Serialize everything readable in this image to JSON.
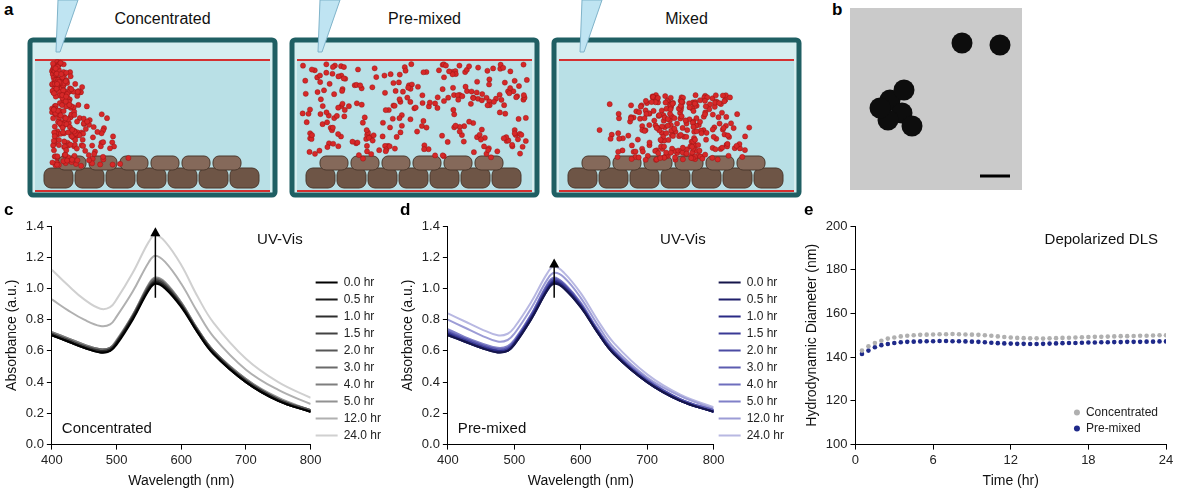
{
  "illustration": {
    "panel_label": "a",
    "labels": [
      "Concentrated",
      "Pre-mixed",
      "Mixed"
    ]
  },
  "image": {
    "panel_label": "b"
  },
  "chart_data": [
    {
      "type": "line",
      "panel_label": "c",
      "annotations": [
        "UV-Vis",
        "Concentrated"
      ],
      "x_label": "Wavelength (nm)",
      "y_label": "Absorbance (a.u.)",
      "x": [
        400,
        425,
        450,
        475,
        490,
        500,
        525,
        550,
        560,
        575,
        600,
        625,
        650,
        700,
        750,
        800
      ],
      "xlim": [
        400,
        800
      ],
      "xticks": [
        400,
        500,
        600,
        700,
        800
      ],
      "ylim": [
        0,
        1.4
      ],
      "yticks": [
        {
          "value": 0,
          "label": "0.0"
        },
        0.2,
        0.4,
        0.6,
        0.8,
        {
          "value": 1,
          "label": "1.0"
        },
        1.2,
        1.4
      ],
      "grid": false,
      "legend": "right",
      "series": [
        {
          "name": "0.0 hr",
          "color": "#000000",
          "line_style": "solid",
          "values": [
            0.7,
            0.66,
            0.62,
            0.59,
            0.6,
            0.64,
            0.8,
            0.99,
            1.03,
            1.0,
            0.88,
            0.72,
            0.58,
            0.4,
            0.28,
            0.21
          ]
        },
        {
          "name": "0.5 hr",
          "color": "#1a1a1a",
          "line_style": "solid",
          "values": [
            0.7,
            0.66,
            0.62,
            0.59,
            0.6,
            0.65,
            0.81,
            1.0,
            1.04,
            1.01,
            0.89,
            0.72,
            0.58,
            0.4,
            0.28,
            0.21
          ]
        },
        {
          "name": "1.0 hr",
          "color": "#2e2e2e",
          "line_style": "solid",
          "values": [
            0.7,
            0.66,
            0.62,
            0.6,
            0.61,
            0.65,
            0.81,
            1.0,
            1.04,
            1.01,
            0.89,
            0.73,
            0.59,
            0.4,
            0.28,
            0.21
          ]
        },
        {
          "name": "1.5 hr",
          "color": "#424242",
          "line_style": "solid",
          "values": [
            0.71,
            0.67,
            0.63,
            0.6,
            0.61,
            0.65,
            0.82,
            1.01,
            1.05,
            1.02,
            0.89,
            0.73,
            0.59,
            0.41,
            0.29,
            0.21
          ]
        },
        {
          "name": "2.0 hr",
          "color": "#565656",
          "line_style": "solid",
          "values": [
            0.71,
            0.67,
            0.63,
            0.6,
            0.61,
            0.66,
            0.82,
            1.01,
            1.05,
            1.02,
            0.9,
            0.73,
            0.59,
            0.41,
            0.29,
            0.22
          ]
        },
        {
          "name": "3.0 hr",
          "color": "#6a6a6a",
          "line_style": "solid",
          "values": [
            0.71,
            0.67,
            0.63,
            0.61,
            0.62,
            0.66,
            0.82,
            1.02,
            1.06,
            1.03,
            0.9,
            0.74,
            0.6,
            0.41,
            0.29,
            0.22
          ]
        },
        {
          "name": "4.0 hr",
          "color": "#7e7e7e",
          "line_style": "solid",
          "values": [
            0.72,
            0.68,
            0.64,
            0.61,
            0.62,
            0.66,
            0.83,
            1.02,
            1.06,
            1.03,
            0.91,
            0.74,
            0.6,
            0.42,
            0.29,
            0.22
          ]
        },
        {
          "name": "5.0 hr",
          "color": "#929292",
          "line_style": "solid",
          "values": [
            0.72,
            0.68,
            0.64,
            0.61,
            0.62,
            0.67,
            0.83,
            1.03,
            1.07,
            1.04,
            0.91,
            0.74,
            0.6,
            0.42,
            0.3,
            0.22
          ]
        },
        {
          "name": "12.0 hr",
          "color": "#b0b0b0",
          "line_style": "solid",
          "values": [
            0.93,
            0.86,
            0.8,
            0.76,
            0.77,
            0.82,
            0.98,
            1.17,
            1.21,
            1.17,
            1.03,
            0.85,
            0.69,
            0.48,
            0.35,
            0.26
          ]
        },
        {
          "name": "24.0 hr",
          "color": "#d0d0d0",
          "line_style": "solid",
          "values": [
            1.12,
            1.02,
            0.93,
            0.87,
            0.88,
            0.93,
            1.1,
            1.3,
            1.34,
            1.3,
            1.15,
            0.95,
            0.78,
            0.55,
            0.4,
            0.3
          ]
        }
      ]
    },
    {
      "type": "line",
      "panel_label": "d",
      "annotations": [
        "UV-Vis",
        "Pre-mixed"
      ],
      "x_label": "Wavelength (nm)",
      "y_label": "Absorbance (a.u.)",
      "x": [
        400,
        425,
        450,
        475,
        490,
        500,
        525,
        550,
        560,
        575,
        600,
        625,
        650,
        700,
        750,
        800
      ],
      "xlim": [
        400,
        800
      ],
      "xticks": [
        400,
        500,
        600,
        700,
        800
      ],
      "ylim": [
        0,
        1.4
      ],
      "yticks": [
        {
          "value": 0,
          "label": "0.0"
        },
        0.2,
        0.4,
        0.6,
        0.8,
        {
          "value": 1,
          "label": "1.0"
        },
        1.2,
        1.4
      ],
      "grid": false,
      "legend": "right",
      "series": [
        {
          "name": "0.0 hr",
          "color": "#15154a",
          "line_style": "solid",
          "values": [
            0.7,
            0.66,
            0.62,
            0.59,
            0.6,
            0.64,
            0.8,
            0.99,
            1.03,
            1.0,
            0.88,
            0.72,
            0.58,
            0.4,
            0.28,
            0.21
          ]
        },
        {
          "name": "0.5 hr",
          "color": "#1f1f6b",
          "line_style": "solid",
          "values": [
            0.7,
            0.66,
            0.62,
            0.59,
            0.6,
            0.64,
            0.8,
            0.99,
            1.04,
            1.0,
            0.88,
            0.72,
            0.58,
            0.4,
            0.28,
            0.21
          ]
        },
        {
          "name": "1.0 hr",
          "color": "#2a2a85",
          "line_style": "solid",
          "values": [
            0.71,
            0.66,
            0.62,
            0.6,
            0.6,
            0.65,
            0.81,
            1.0,
            1.04,
            1.01,
            0.89,
            0.72,
            0.58,
            0.4,
            0.28,
            0.21
          ]
        },
        {
          "name": "1.5 hr",
          "color": "#3a3a95",
          "line_style": "solid",
          "values": [
            0.71,
            0.67,
            0.63,
            0.6,
            0.61,
            0.65,
            0.81,
            1.0,
            1.05,
            1.01,
            0.89,
            0.73,
            0.59,
            0.4,
            0.28,
            0.21
          ]
        },
        {
          "name": "2.0 hr",
          "color": "#4b4ba3",
          "line_style": "solid",
          "values": [
            0.72,
            0.67,
            0.63,
            0.6,
            0.61,
            0.65,
            0.82,
            1.01,
            1.05,
            1.02,
            0.89,
            0.73,
            0.59,
            0.41,
            0.29,
            0.21
          ]
        },
        {
          "name": "3.0 hr",
          "color": "#5c5cb0",
          "line_style": "solid",
          "values": [
            0.72,
            0.68,
            0.64,
            0.61,
            0.62,
            0.66,
            0.82,
            1.02,
            1.06,
            1.02,
            0.9,
            0.73,
            0.59,
            0.41,
            0.29,
            0.22
          ]
        },
        {
          "name": "4.0 hr",
          "color": "#6e6ebd",
          "line_style": "solid",
          "values": [
            0.73,
            0.68,
            0.64,
            0.61,
            0.62,
            0.66,
            0.83,
            1.02,
            1.06,
            1.03,
            0.9,
            0.74,
            0.6,
            0.41,
            0.29,
            0.22
          ]
        },
        {
          "name": "5.0 hr",
          "color": "#8080c8",
          "line_style": "solid",
          "values": [
            0.74,
            0.69,
            0.65,
            0.62,
            0.63,
            0.67,
            0.83,
            1.03,
            1.07,
            1.03,
            0.91,
            0.74,
            0.6,
            0.42,
            0.29,
            0.22
          ]
        },
        {
          "name": "12.0 hr",
          "color": "#9c9cd6",
          "line_style": "solid",
          "values": [
            0.8,
            0.75,
            0.7,
            0.66,
            0.67,
            0.71,
            0.87,
            1.06,
            1.1,
            1.07,
            0.94,
            0.77,
            0.62,
            0.43,
            0.31,
            0.23
          ]
        },
        {
          "name": "24.0 hr",
          "color": "#b8b8e2",
          "line_style": "solid",
          "values": [
            0.84,
            0.79,
            0.74,
            0.7,
            0.71,
            0.75,
            0.91,
            1.1,
            1.14,
            1.1,
            0.97,
            0.8,
            0.65,
            0.45,
            0.32,
            0.24
          ]
        }
      ]
    },
    {
      "type": "scatter",
      "panel_label": "e",
      "annotations": [
        "Depolarized DLS"
      ],
      "x_label": "Time (hr)",
      "y_label": "Hydrodynamic Diameter (nm)",
      "x": [
        0.5,
        1,
        1.5,
        2,
        2.5,
        3,
        3.5,
        4,
        4.5,
        5,
        5.5,
        6,
        6.5,
        7,
        7.5,
        8,
        8.5,
        9,
        9.5,
        10,
        10.5,
        11,
        11.5,
        12,
        12.5,
        13,
        13.5,
        14,
        14.5,
        15,
        15.5,
        16,
        16.5,
        17,
        17.5,
        18,
        18.5,
        19,
        19.5,
        20,
        20.5,
        21,
        21.5,
        22,
        22.5,
        23,
        23.5,
        24
      ],
      "xlim": [
        0,
        24
      ],
      "xticks": [
        0,
        6,
        12,
        18,
        24
      ],
      "ylim": [
        100,
        200
      ],
      "yticks": [
        100,
        120,
        140,
        160,
        180,
        200
      ],
      "grid": false,
      "legend": "lower right",
      "series": [
        {
          "name": "Concentrated",
          "color": "#b0b0b0",
          "marker": "circle",
          "values": [
            143,
            145,
            146.5,
            147.5,
            148.5,
            149,
            149.5,
            149.8,
            150,
            150.2,
            150.3,
            150.4,
            150.5,
            150.5,
            150.6,
            150.5,
            150.4,
            150.3,
            150.2,
            150,
            149.8,
            149.5,
            149.2,
            149,
            148.8,
            148.7,
            148.6,
            148.6,
            148.5,
            148.6,
            148.7,
            148.8,
            148.9,
            149,
            149.1,
            149.2,
            149.3,
            149.3,
            149.4,
            149.5,
            149.6,
            149.6,
            149.7,
            149.8,
            149.8,
            149.9,
            150,
            150
          ]
        },
        {
          "name": "Pre-mixed",
          "color": "#1f2a8a",
          "marker": "circle",
          "values": [
            141.5,
            143,
            144.5,
            145.5,
            146,
            146.5,
            146.8,
            147,
            147.1,
            147.2,
            147.3,
            147.3,
            147.4,
            147.4,
            147.3,
            147.3,
            147.2,
            147.1,
            147,
            146.8,
            146.6,
            146.4,
            146.3,
            146.2,
            146.1,
            146.1,
            146,
            146,
            146.1,
            146.2,
            146.3,
            146.4,
            146.5,
            146.5,
            146.6,
            146.7,
            146.7,
            146.8,
            146.8,
            146.9,
            146.9,
            147,
            147,
            147,
            147.1,
            147.1,
            147.2,
            147.2
          ]
        }
      ]
    }
  ]
}
